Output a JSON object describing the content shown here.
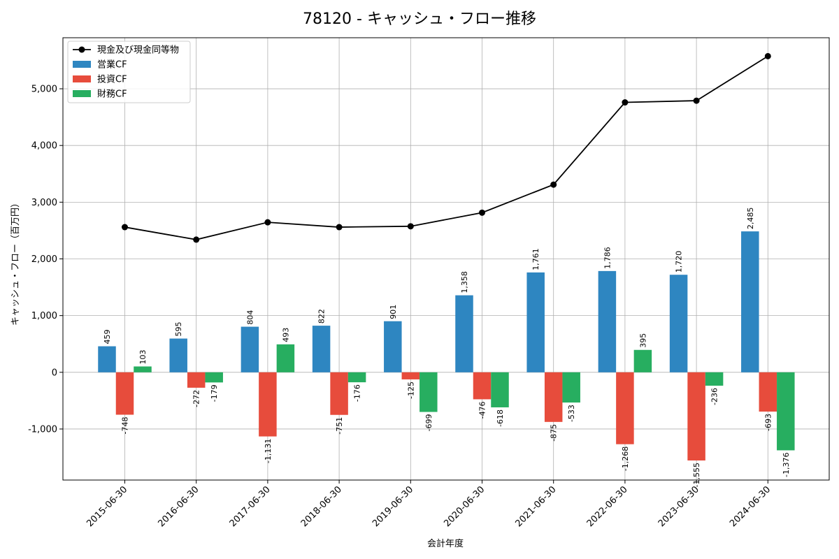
{
  "chart_data": {
    "type": "bar",
    "title": "78120 - キャッシュ・フロー推移",
    "xlabel": "会計年度",
    "ylabel": "キャッシュ・フロー（百万円）",
    "categories": [
      "2015-06-30",
      "2016-06-30",
      "2017-06-30",
      "2018-06-30",
      "2019-06-30",
      "2020-06-30",
      "2021-06-30",
      "2022-06-30",
      "2023-06-30",
      "2024-06-30"
    ],
    "series": [
      {
        "name": "営業CF",
        "type": "bar",
        "color": "#2e86c1",
        "values": [
          459,
          595,
          804,
          822,
          901,
          1358,
          1761,
          1786,
          1720,
          2485
        ],
        "labels": [
          "459",
          "595",
          "804",
          "822",
          "901",
          "1,358",
          "1,761",
          "1,786",
          "1,720",
          "2,485"
        ]
      },
      {
        "name": "投資CF",
        "type": "bar",
        "color": "#e74c3c",
        "values": [
          -748,
          -272,
          -1131,
          -751,
          -125,
          -476,
          -875,
          -1268,
          -1555,
          -693
        ],
        "labels": [
          "-748",
          "-272",
          "-1,131",
          "-751",
          "-125",
          "-476",
          "-875",
          "-1,268",
          "-1,555",
          "-693"
        ]
      },
      {
        "name": "財務CF",
        "type": "bar",
        "color": "#27ae60",
        "values": [
          103,
          -179,
          493,
          -176,
          -699,
          -618,
          -533,
          395,
          -236,
          -1376
        ],
        "labels": [
          "103",
          "-179",
          "493",
          "-176",
          "-699",
          "-618",
          "-533",
          "395",
          "-236",
          "-1,376"
        ]
      },
      {
        "name": "現金及び現金同等物",
        "type": "line",
        "color": "#000000",
        "values": [
          2560,
          2340,
          2645,
          2560,
          2575,
          2815,
          3310,
          4760,
          4790,
          5575
        ]
      }
    ],
    "ylim": [
      -1900,
      5900
    ],
    "yticks": [
      -1000,
      0,
      1000,
      2000,
      3000,
      4000,
      5000
    ],
    "ytick_labels": [
      "-1,000",
      "0",
      "1,000",
      "2,000",
      "3,000",
      "4,000",
      "5,000"
    ],
    "grid": true,
    "legend_position": "top-left",
    "legend_order": [
      "現金及び現金同等物",
      "営業CF",
      "投資CF",
      "財務CF"
    ]
  }
}
